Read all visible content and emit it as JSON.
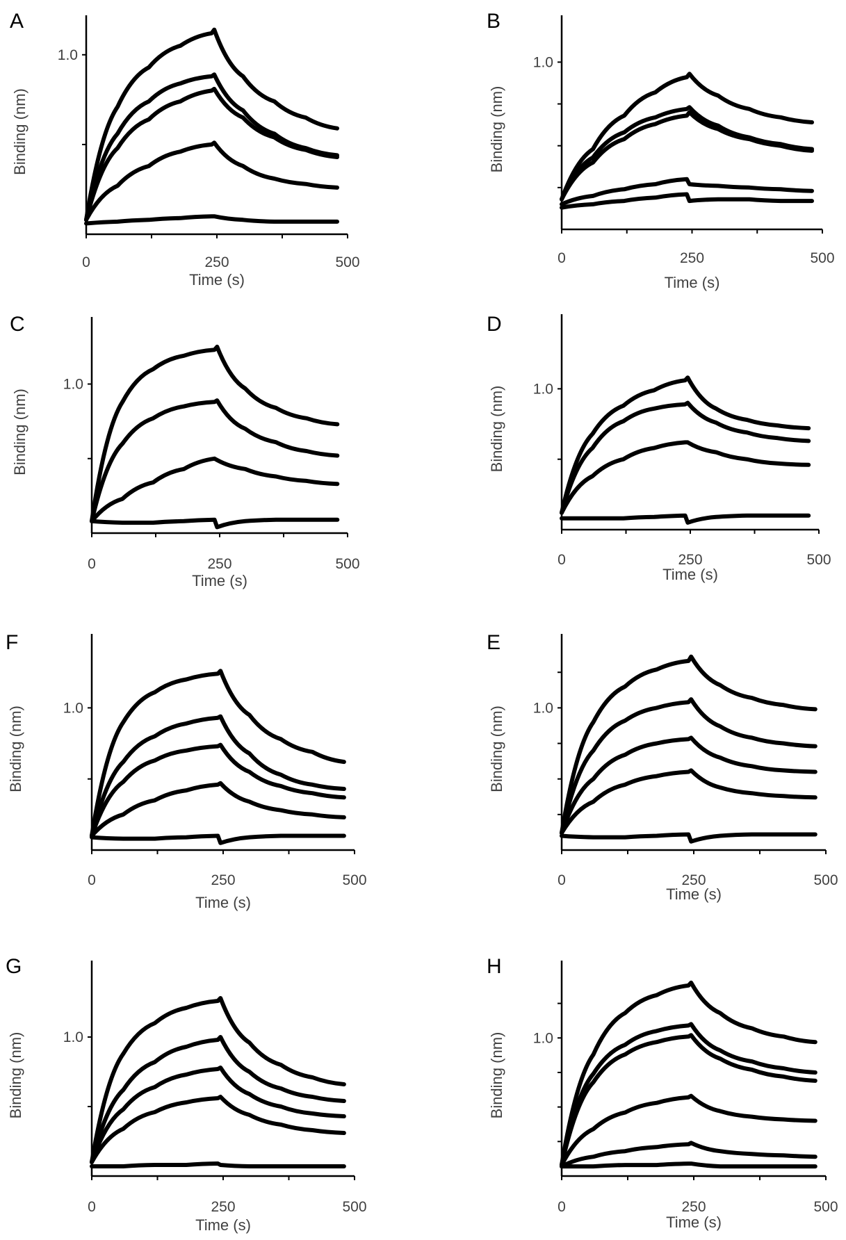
{
  "figure": {
    "line_color": "#000000",
    "text_color": "#404040"
  },
  "chart_data": [
    {
      "panel": "A",
      "type": "line",
      "xlabel": "Time (s)",
      "ylabel": "Binding (nm)",
      "xlim": [
        0,
        500
      ],
      "ylim": [
        0,
        1.22
      ],
      "xticks": [
        0,
        250,
        500
      ],
      "ytick_labels": [
        {
          "value": 1.0,
          "label": "1.0"
        }
      ],
      "minor_xticks": [
        125,
        375
      ],
      "minor_yticks": [
        0.5
      ],
      "x": [
        0,
        60,
        120,
        180,
        240,
        245,
        300,
        360,
        420,
        480
      ],
      "series": [
        {
          "name": "curve 1",
          "values": [
            0.08,
            0.71,
            0.93,
            1.05,
            1.12,
            1.14,
            0.88,
            0.74,
            0.65,
            0.59
          ]
        },
        {
          "name": "curve 2",
          "values": [
            0.08,
            0.56,
            0.74,
            0.84,
            0.88,
            0.89,
            0.69,
            0.56,
            0.48,
            0.44
          ]
        },
        {
          "name": "curve 3",
          "values": [
            0.08,
            0.48,
            0.64,
            0.74,
            0.8,
            0.81,
            0.65,
            0.54,
            0.47,
            0.43
          ]
        },
        {
          "name": "curve 4",
          "values": [
            0.08,
            0.27,
            0.38,
            0.46,
            0.5,
            0.51,
            0.38,
            0.31,
            0.28,
            0.26
          ]
        },
        {
          "name": "curve 5",
          "values": [
            0.06,
            0.07,
            0.08,
            0.09,
            0.1,
            0.1,
            0.08,
            0.07,
            0.07,
            0.07
          ]
        }
      ]
    },
    {
      "panel": "B",
      "type": "line",
      "xlabel": "Time (s)",
      "ylabel": "Binding (nm)",
      "xlim": [
        0,
        500
      ],
      "ylim": [
        0,
        1.28
      ],
      "xticks": [
        0,
        250,
        500
      ],
      "ytick_labels": [
        {
          "value": 1.0,
          "label": "1.0"
        }
      ],
      "minor_xticks": [
        125,
        375
      ],
      "minor_yticks": [
        0.25,
        0.5,
        0.75
      ],
      "x": [
        0,
        60,
        120,
        180,
        240,
        245,
        300,
        360,
        420,
        480
      ],
      "series": [
        {
          "name": "curve 1",
          "values": [
            0.18,
            0.48,
            0.68,
            0.82,
            0.91,
            0.93,
            0.8,
            0.72,
            0.67,
            0.64
          ]
        },
        {
          "name": "curve 2",
          "values": [
            0.18,
            0.43,
            0.58,
            0.67,
            0.72,
            0.73,
            0.62,
            0.55,
            0.51,
            0.48
          ]
        },
        {
          "name": "curve 3",
          "values": [
            0.18,
            0.4,
            0.54,
            0.63,
            0.68,
            0.7,
            0.6,
            0.54,
            0.5,
            0.47
          ]
        },
        {
          "name": "curve 4",
          "values": [
            0.15,
            0.2,
            0.24,
            0.27,
            0.3,
            0.27,
            0.26,
            0.25,
            0.24,
            0.23
          ]
        },
        {
          "name": "curve 5",
          "values": [
            0.13,
            0.15,
            0.17,
            0.19,
            0.21,
            0.17,
            0.18,
            0.18,
            0.17,
            0.17
          ]
        }
      ]
    },
    {
      "panel": "C",
      "type": "line",
      "xlabel": "Time (s)",
      "ylabel": "Binding (nm)",
      "xlim": [
        0,
        500
      ],
      "ylim": [
        0,
        1.45
      ],
      "xticks": [
        0,
        250,
        500
      ],
      "ytick_labels": [
        {
          "value": 1.0,
          "label": "1.0"
        }
      ],
      "minor_xticks": [
        125,
        375
      ],
      "minor_yticks": [
        0.5
      ],
      "x": [
        0,
        60,
        120,
        180,
        240,
        245,
        300,
        360,
        420,
        480
      ],
      "series": [
        {
          "name": "curve 1",
          "values": [
            0.08,
            0.88,
            1.1,
            1.19,
            1.23,
            1.25,
            0.97,
            0.84,
            0.77,
            0.73
          ]
        },
        {
          "name": "curve 2",
          "values": [
            0.08,
            0.6,
            0.77,
            0.85,
            0.88,
            0.89,
            0.7,
            0.61,
            0.55,
            0.52
          ]
        },
        {
          "name": "curve 3",
          "values": [
            0.08,
            0.23,
            0.34,
            0.43,
            0.5,
            0.49,
            0.43,
            0.38,
            0.35,
            0.33
          ]
        },
        {
          "name": "curve 4",
          "values": [
            0.08,
            0.07,
            0.07,
            0.08,
            0.09,
            0.04,
            0.08,
            0.09,
            0.09,
            0.09
          ]
        }
      ]
    },
    {
      "panel": "D",
      "type": "line",
      "xlabel": "Time (s)",
      "ylabel": "Binding (nm)",
      "xlim": [
        0,
        500
      ],
      "ylim": [
        0,
        1.53
      ],
      "xticks": [
        0,
        250,
        500
      ],
      "ytick_labels": [
        {
          "value": 1.0,
          "label": "1.0"
        }
      ],
      "minor_xticks": [
        125,
        375
      ],
      "minor_yticks": [
        0.5
      ],
      "x": [
        0,
        60,
        120,
        180,
        240,
        245,
        300,
        360,
        420,
        480
      ],
      "series": [
        {
          "name": "curve 1",
          "values": [
            0.12,
            0.68,
            0.88,
            0.99,
            1.06,
            1.08,
            0.86,
            0.78,
            0.74,
            0.72
          ]
        },
        {
          "name": "curve 2",
          "values": [
            0.12,
            0.58,
            0.77,
            0.86,
            0.89,
            0.9,
            0.76,
            0.69,
            0.65,
            0.63
          ]
        },
        {
          "name": "curve 3",
          "values": [
            0.12,
            0.38,
            0.5,
            0.58,
            0.62,
            0.62,
            0.55,
            0.5,
            0.47,
            0.46
          ]
        },
        {
          "name": "curve 4",
          "values": [
            0.08,
            0.08,
            0.08,
            0.09,
            0.1,
            0.05,
            0.09,
            0.1,
            0.1,
            0.1
          ]
        }
      ]
    },
    {
      "panel": "F",
      "type": "line",
      "xlabel": "Time (s)",
      "ylabel": "Binding (nm)",
      "xlim": [
        0,
        500
      ],
      "ylim": [
        0,
        1.52
      ],
      "xticks": [
        0,
        250,
        500
      ],
      "ytick_labels": [
        {
          "value": 1.0,
          "label": "1.0"
        }
      ],
      "minor_xticks": [
        125,
        375
      ],
      "minor_yticks": [
        0.5
      ],
      "x": [
        0,
        60,
        120,
        180,
        240,
        245,
        300,
        360,
        420,
        480
      ],
      "series": [
        {
          "name": "curve 1",
          "values": [
            0.1,
            0.9,
            1.11,
            1.2,
            1.24,
            1.26,
            0.95,
            0.78,
            0.69,
            0.62
          ]
        },
        {
          "name": "curve 2",
          "values": [
            0.1,
            0.62,
            0.8,
            0.89,
            0.93,
            0.94,
            0.68,
            0.53,
            0.46,
            0.43
          ]
        },
        {
          "name": "curve 3",
          "values": [
            0.1,
            0.48,
            0.63,
            0.7,
            0.73,
            0.74,
            0.55,
            0.45,
            0.4,
            0.37
          ]
        },
        {
          "name": "curve 4",
          "values": [
            0.1,
            0.25,
            0.35,
            0.42,
            0.46,
            0.47,
            0.34,
            0.28,
            0.25,
            0.23
          ]
        },
        {
          "name": "curve 5",
          "values": [
            0.09,
            0.08,
            0.08,
            0.09,
            0.1,
            0.05,
            0.09,
            0.1,
            0.1,
            0.1
          ]
        }
      ]
    },
    {
      "panel": "E",
      "type": "line",
      "xlabel": "Time (s)",
      "ylabel": "Binding (nm)",
      "xlim": [
        0,
        500
      ],
      "ylim": [
        0,
        1.52
      ],
      "xticks": [
        0,
        250,
        500
      ],
      "ytick_labels": [
        {
          "value": 1.0,
          "label": "1.0"
        }
      ],
      "minor_xticks": [
        125,
        375
      ],
      "minor_yticks": [
        0.25,
        0.5,
        0.75,
        1.25
      ],
      "x": [
        0,
        60,
        120,
        180,
        240,
        245,
        300,
        360,
        420,
        480
      ],
      "series": [
        {
          "name": "curve 1",
          "values": [
            0.12,
            0.9,
            1.15,
            1.27,
            1.33,
            1.36,
            1.16,
            1.07,
            1.02,
            0.99
          ]
        },
        {
          "name": "curve 2",
          "values": [
            0.12,
            0.7,
            0.91,
            1.0,
            1.04,
            1.06,
            0.87,
            0.79,
            0.75,
            0.73
          ]
        },
        {
          "name": "curve 3",
          "values": [
            0.12,
            0.5,
            0.67,
            0.75,
            0.78,
            0.79,
            0.65,
            0.59,
            0.56,
            0.55
          ]
        },
        {
          "name": "curve 4",
          "values": [
            0.12,
            0.34,
            0.46,
            0.52,
            0.55,
            0.56,
            0.44,
            0.4,
            0.38,
            0.37
          ]
        },
        {
          "name": "curve 5",
          "values": [
            0.1,
            0.09,
            0.09,
            0.1,
            0.11,
            0.06,
            0.1,
            0.11,
            0.11,
            0.11
          ]
        }
      ]
    },
    {
      "panel": "G",
      "type": "line",
      "xlabel": "Time (s)",
      "ylabel": "Binding (nm)",
      "xlim": [
        0,
        500
      ],
      "ylim": [
        0,
        1.55
      ],
      "xticks": [
        0,
        250,
        500
      ],
      "ytick_labels": [
        {
          "value": 1.0,
          "label": "1.0"
        }
      ],
      "minor_xticks": [
        125,
        375
      ],
      "minor_yticks": [
        0.5
      ],
      "x": [
        0,
        60,
        120,
        180,
        240,
        245,
        300,
        360,
        420,
        480
      ],
      "series": [
        {
          "name": "curve 1",
          "values": [
            0.1,
            0.88,
            1.1,
            1.21,
            1.26,
            1.28,
            0.96,
            0.8,
            0.71,
            0.66
          ]
        },
        {
          "name": "curve 2",
          "values": [
            0.1,
            0.62,
            0.82,
            0.93,
            0.98,
            1.0,
            0.75,
            0.63,
            0.57,
            0.54
          ]
        },
        {
          "name": "curve 3",
          "values": [
            0.1,
            0.48,
            0.64,
            0.73,
            0.77,
            0.78,
            0.59,
            0.5,
            0.45,
            0.43
          ]
        },
        {
          "name": "curve 4",
          "values": [
            0.1,
            0.34,
            0.46,
            0.53,
            0.56,
            0.57,
            0.44,
            0.37,
            0.33,
            0.31
          ]
        },
        {
          "name": "curve 5",
          "values": [
            0.07,
            0.07,
            0.08,
            0.08,
            0.09,
            0.08,
            0.07,
            0.07,
            0.07,
            0.07
          ]
        }
      ]
    },
    {
      "panel": "H",
      "type": "line",
      "xlabel": "Time (s)",
      "ylabel": "Binding (nm)",
      "xlim": [
        0,
        500
      ],
      "ylim": [
        0,
        1.56
      ],
      "xticks": [
        0,
        250,
        500
      ],
      "ytick_labels": [
        {
          "value": 1.0,
          "label": "1.0"
        }
      ],
      "minor_xticks": [
        125,
        375
      ],
      "minor_yticks": [
        0.25,
        0.5,
        0.75,
        1.25
      ],
      "x": [
        0,
        60,
        120,
        180,
        240,
        245,
        300,
        360,
        420,
        480
      ],
      "series": [
        {
          "name": "curve 1",
          "values": [
            0.08,
            0.88,
            1.18,
            1.31,
            1.38,
            1.4,
            1.18,
            1.07,
            1.01,
            0.97
          ]
        },
        {
          "name": "curve 2",
          "values": [
            0.08,
            0.74,
            0.95,
            1.05,
            1.09,
            1.1,
            0.91,
            0.83,
            0.78,
            0.75
          ]
        },
        {
          "name": "curve 3",
          "values": [
            0.08,
            0.68,
            0.88,
            0.97,
            1.01,
            1.02,
            0.85,
            0.77,
            0.72,
            0.69
          ]
        },
        {
          "name": "curve 4",
          "values": [
            0.08,
            0.34,
            0.46,
            0.53,
            0.57,
            0.58,
            0.47,
            0.43,
            0.41,
            0.4
          ]
        },
        {
          "name": "curve 5",
          "values": [
            0.07,
            0.14,
            0.18,
            0.21,
            0.23,
            0.24,
            0.18,
            0.16,
            0.15,
            0.14
          ]
        },
        {
          "name": "curve 6",
          "values": [
            0.07,
            0.07,
            0.08,
            0.08,
            0.09,
            0.09,
            0.07,
            0.07,
            0.07,
            0.07
          ]
        }
      ]
    }
  ]
}
